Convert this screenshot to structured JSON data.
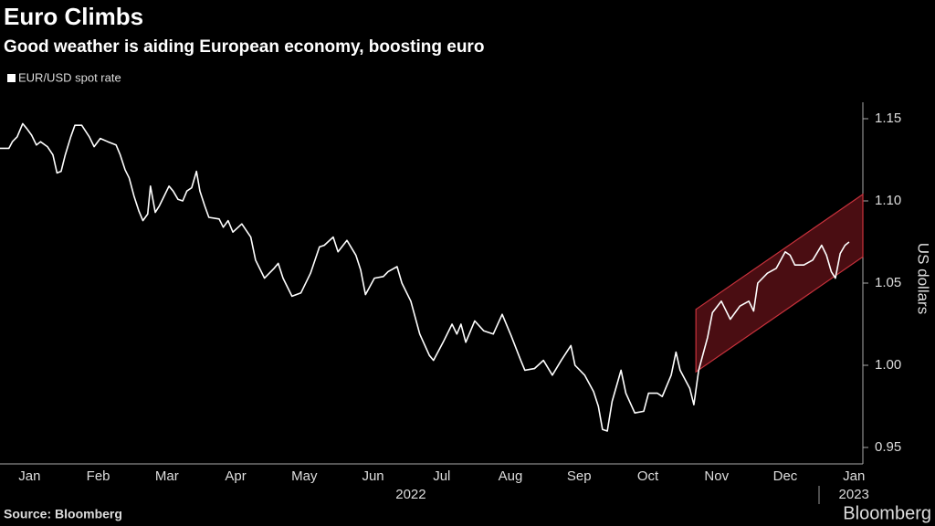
{
  "chart_data": {
    "type": "line",
    "title": "Euro Climbs",
    "subtitle": "Good weather is aiding European economy, boosting euro",
    "y_label": "US dollars",
    "source": "Source: Bloomberg",
    "brand": "Bloomberg",
    "xlim": [
      0.07,
      12.63
    ],
    "ylim": [
      0.94,
      1.16
    ],
    "yticks": [
      0.95,
      {
        "value": 1,
        "label": "1.00"
      },
      1.05,
      {
        "value": 1.1,
        "label": "1.10"
      },
      1.15
    ],
    "xticks": [
      {
        "value": 0.5,
        "label": "Jan"
      },
      {
        "value": 1.5,
        "label": "Feb"
      },
      {
        "value": 2.5,
        "label": "Mar"
      },
      {
        "value": 3.5,
        "label": "Apr"
      },
      {
        "value": 4.5,
        "label": "May"
      },
      {
        "value": 5.5,
        "label": "Jun"
      },
      {
        "value": 6.5,
        "label": "Jul"
      },
      {
        "value": 7.5,
        "label": "Aug"
      },
      {
        "value": 8.5,
        "label": "Sep"
      },
      {
        "value": 9.5,
        "label": "Oct"
      },
      {
        "value": 10.5,
        "label": "Nov"
      },
      {
        "value": 11.5,
        "label": "Dec"
      },
      {
        "value": 12.5,
        "label": "Jan"
      }
    ],
    "year_labels": [
      {
        "value": 6.05,
        "label": "2022"
      },
      {
        "value": 12.5,
        "label": "2023"
      }
    ],
    "channel": {
      "x": [
        10.2,
        12.63
      ],
      "upper": [
        1.034,
        1.104
      ],
      "lower": [
        0.996,
        1.066
      ],
      "fill": "#4a0d12",
      "stroke": "#c8323c"
    },
    "x": [
      0.07,
      0.2,
      0.25,
      0.32,
      0.4,
      0.46,
      0.53,
      0.6,
      0.66,
      0.76,
      0.84,
      0.9,
      0.96,
      1.02,
      1.1,
      1.16,
      1.26,
      1.37,
      1.44,
      1.53,
      1.64,
      1.76,
      1.82,
      1.89,
      1.95,
      2.02,
      2.09,
      2.15,
      2.22,
      2.26,
      2.33,
      2.39,
      2.46,
      2.53,
      2.59,
      2.66,
      2.73,
      2.79,
      2.86,
      2.93,
      2.98,
      3.05,
      3.11,
      3.26,
      3.32,
      3.39,
      3.46,
      3.59,
      3.72,
      3.79,
      3.92,
      4.06,
      4.12,
      4.19,
      4.32,
      4.45,
      4.59,
      4.72,
      4.79,
      4.92,
      4.99,
      5.12,
      5.25,
      5.32,
      5.39,
      5.52,
      5.65,
      5.72,
      5.85,
      5.92,
      6.05,
      6.18,
      6.32,
      6.38,
      6.52,
      6.65,
      6.72,
      6.78,
      6.85,
      6.98,
      7.11,
      7.25,
      7.38,
      7.51,
      7.65,
      7.71,
      7.85,
      7.98,
      8.11,
      8.24,
      8.38,
      8.44,
      8.58,
      8.71,
      8.78,
      8.84,
      8.91,
      8.98,
      9.11,
      9.18,
      9.31,
      9.44,
      9.51,
      9.64,
      9.71,
      9.84,
      9.91,
      9.97,
      10.11,
      10.17,
      10.24,
      10.37,
      10.44,
      10.57,
      10.7,
      10.84,
      10.97,
      11.04,
      11.1,
      11.24,
      11.37,
      11.5,
      11.57,
      11.64,
      11.77,
      11.9,
      12.03,
      12.1,
      12.17,
      12.23,
      12.3,
      12.37,
      12.43
    ],
    "series": [
      {
        "name": "EUR/USD spot rate",
        "color": "#ffffff",
        "values": [
          1.132,
          1.132,
          1.136,
          1.139,
          1.147,
          1.144,
          1.14,
          1.134,
          1.136,
          1.133,
          1.128,
          1.117,
          1.118,
          1.128,
          1.139,
          1.146,
          1.146,
          1.139,
          1.133,
          1.138,
          1.136,
          1.134,
          1.128,
          1.119,
          1.114,
          1.103,
          1.094,
          1.088,
          1.092,
          1.109,
          1.093,
          1.097,
          1.103,
          1.109,
          1.106,
          1.101,
          1.1,
          1.106,
          1.108,
          1.118,
          1.106,
          1.097,
          1.09,
          1.089,
          1.084,
          1.088,
          1.081,
          1.086,
          1.078,
          1.064,
          1.053,
          1.059,
          1.062,
          1.053,
          1.042,
          1.044,
          1.056,
          1.072,
          1.073,
          1.078,
          1.069,
          1.076,
          1.067,
          1.058,
          1.043,
          1.053,
          1.054,
          1.057,
          1.06,
          1.05,
          1.039,
          1.019,
          1.006,
          1.003,
          1.014,
          1.025,
          1.019,
          1.025,
          1.014,
          1.027,
          1.021,
          1.019,
          1.031,
          1.018,
          1.003,
          0.997,
          0.998,
          1.003,
          0.994,
          1.003,
          1.012,
          1,
          0.994,
          0.984,
          0.975,
          0.961,
          0.96,
          0.978,
          0.997,
          0.983,
          0.971,
          0.972,
          0.983,
          0.983,
          0.981,
          0.994,
          1.008,
          0.997,
          0.986,
          0.976,
          0.997,
          1.017,
          1.032,
          1.039,
          1.028,
          1.036,
          1.039,
          1.033,
          1.05,
          1.056,
          1.059,
          1.069,
          1.067,
          1.061,
          1.061,
          1.064,
          1.073,
          1.067,
          1.057,
          1.053,
          1.068,
          1.073,
          1.075
        ]
      }
    ]
  }
}
